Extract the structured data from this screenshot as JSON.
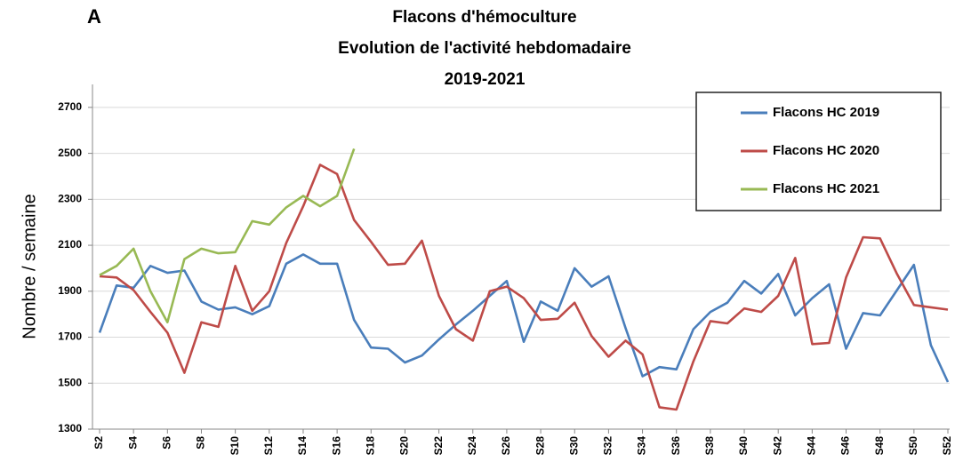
{
  "chart_data": {
    "type": "line",
    "panel_label": "A",
    "title": [
      "Flacons d'hémoculture",
      "Evolution de l'activité hebdomadaire",
      "2019-2021"
    ],
    "ylabel": "Nombre / semaine",
    "categories": [
      "S2",
      null,
      "S4",
      null,
      "S6",
      null,
      "S8",
      null,
      "S10",
      null,
      "S12",
      null,
      "S14",
      null,
      "S16",
      null,
      "S18",
      null,
      "S20",
      null,
      "S22",
      null,
      "S24",
      null,
      "S26",
      null,
      "S28",
      null,
      "S30",
      null,
      "S32",
      null,
      "S34",
      null,
      "S36",
      null,
      "S38",
      null,
      "S40",
      null,
      "S42",
      null,
      "S44",
      null,
      "S46",
      null,
      "S48",
      null,
      "S50",
      null,
      "S52"
    ],
    "series": [
      {
        "name": "Flacons HC 2019",
        "color": "#4a7ebb",
        "values": [
          1720,
          1925,
          1915,
          2010,
          1980,
          1990,
          1855,
          1820,
          1830,
          1800,
          1835,
          2020,
          2060,
          2020,
          2020,
          1775,
          1655,
          1650,
          1590,
          1620,
          1690,
          1755,
          1815,
          1880,
          1945,
          1680,
          1855,
          1815,
          2000,
          1920,
          1965,
          1740,
          1530,
          1570,
          1560,
          1735,
          1810,
          1850,
          1945,
          1890,
          1975,
          1795,
          1870,
          1930,
          1650,
          1805,
          1795,
          1905,
          2015,
          1665,
          1505
        ]
      },
      {
        "name": "Flacons HC 2020",
        "color": "#be4b48",
        "values": [
          1965,
          1960,
          1905,
          1810,
          1720,
          1545,
          1765,
          1745,
          2010,
          1815,
          1900,
          2110,
          2270,
          2450,
          2410,
          2210,
          2115,
          2015,
          2020,
          2120,
          1880,
          1735,
          1685,
          1900,
          1920,
          1870,
          1775,
          1780,
          1850,
          1705,
          1615,
          1685,
          1625,
          1395,
          1385,
          1595,
          1770,
          1760,
          1825,
          1810,
          1880,
          2045,
          1670,
          1675,
          1960,
          2135,
          2130,
          1975,
          1840,
          1830,
          1820
        ]
      },
      {
        "name": "Flacons HC 2021",
        "color": "#98b954",
        "values": [
          1970,
          2010,
          2085,
          1900,
          1765,
          2040,
          2085,
          2065,
          2070,
          2205,
          2190,
          2265,
          2315,
          2270,
          2315,
          2520,
          null,
          null,
          null,
          null,
          null,
          null,
          null,
          null,
          null,
          null,
          null,
          null,
          null,
          null,
          null,
          null,
          null,
          null,
          null,
          null,
          null,
          null,
          null,
          null,
          null,
          null,
          null,
          null,
          null,
          null,
          null,
          null,
          null,
          null,
          null
        ]
      }
    ],
    "ylim": [
      1300,
      2800
    ],
    "yticks": [
      1300,
      1500,
      1700,
      1900,
      2100,
      2300,
      2500,
      2700
    ],
    "grid": true,
    "legend": "upper right"
  }
}
